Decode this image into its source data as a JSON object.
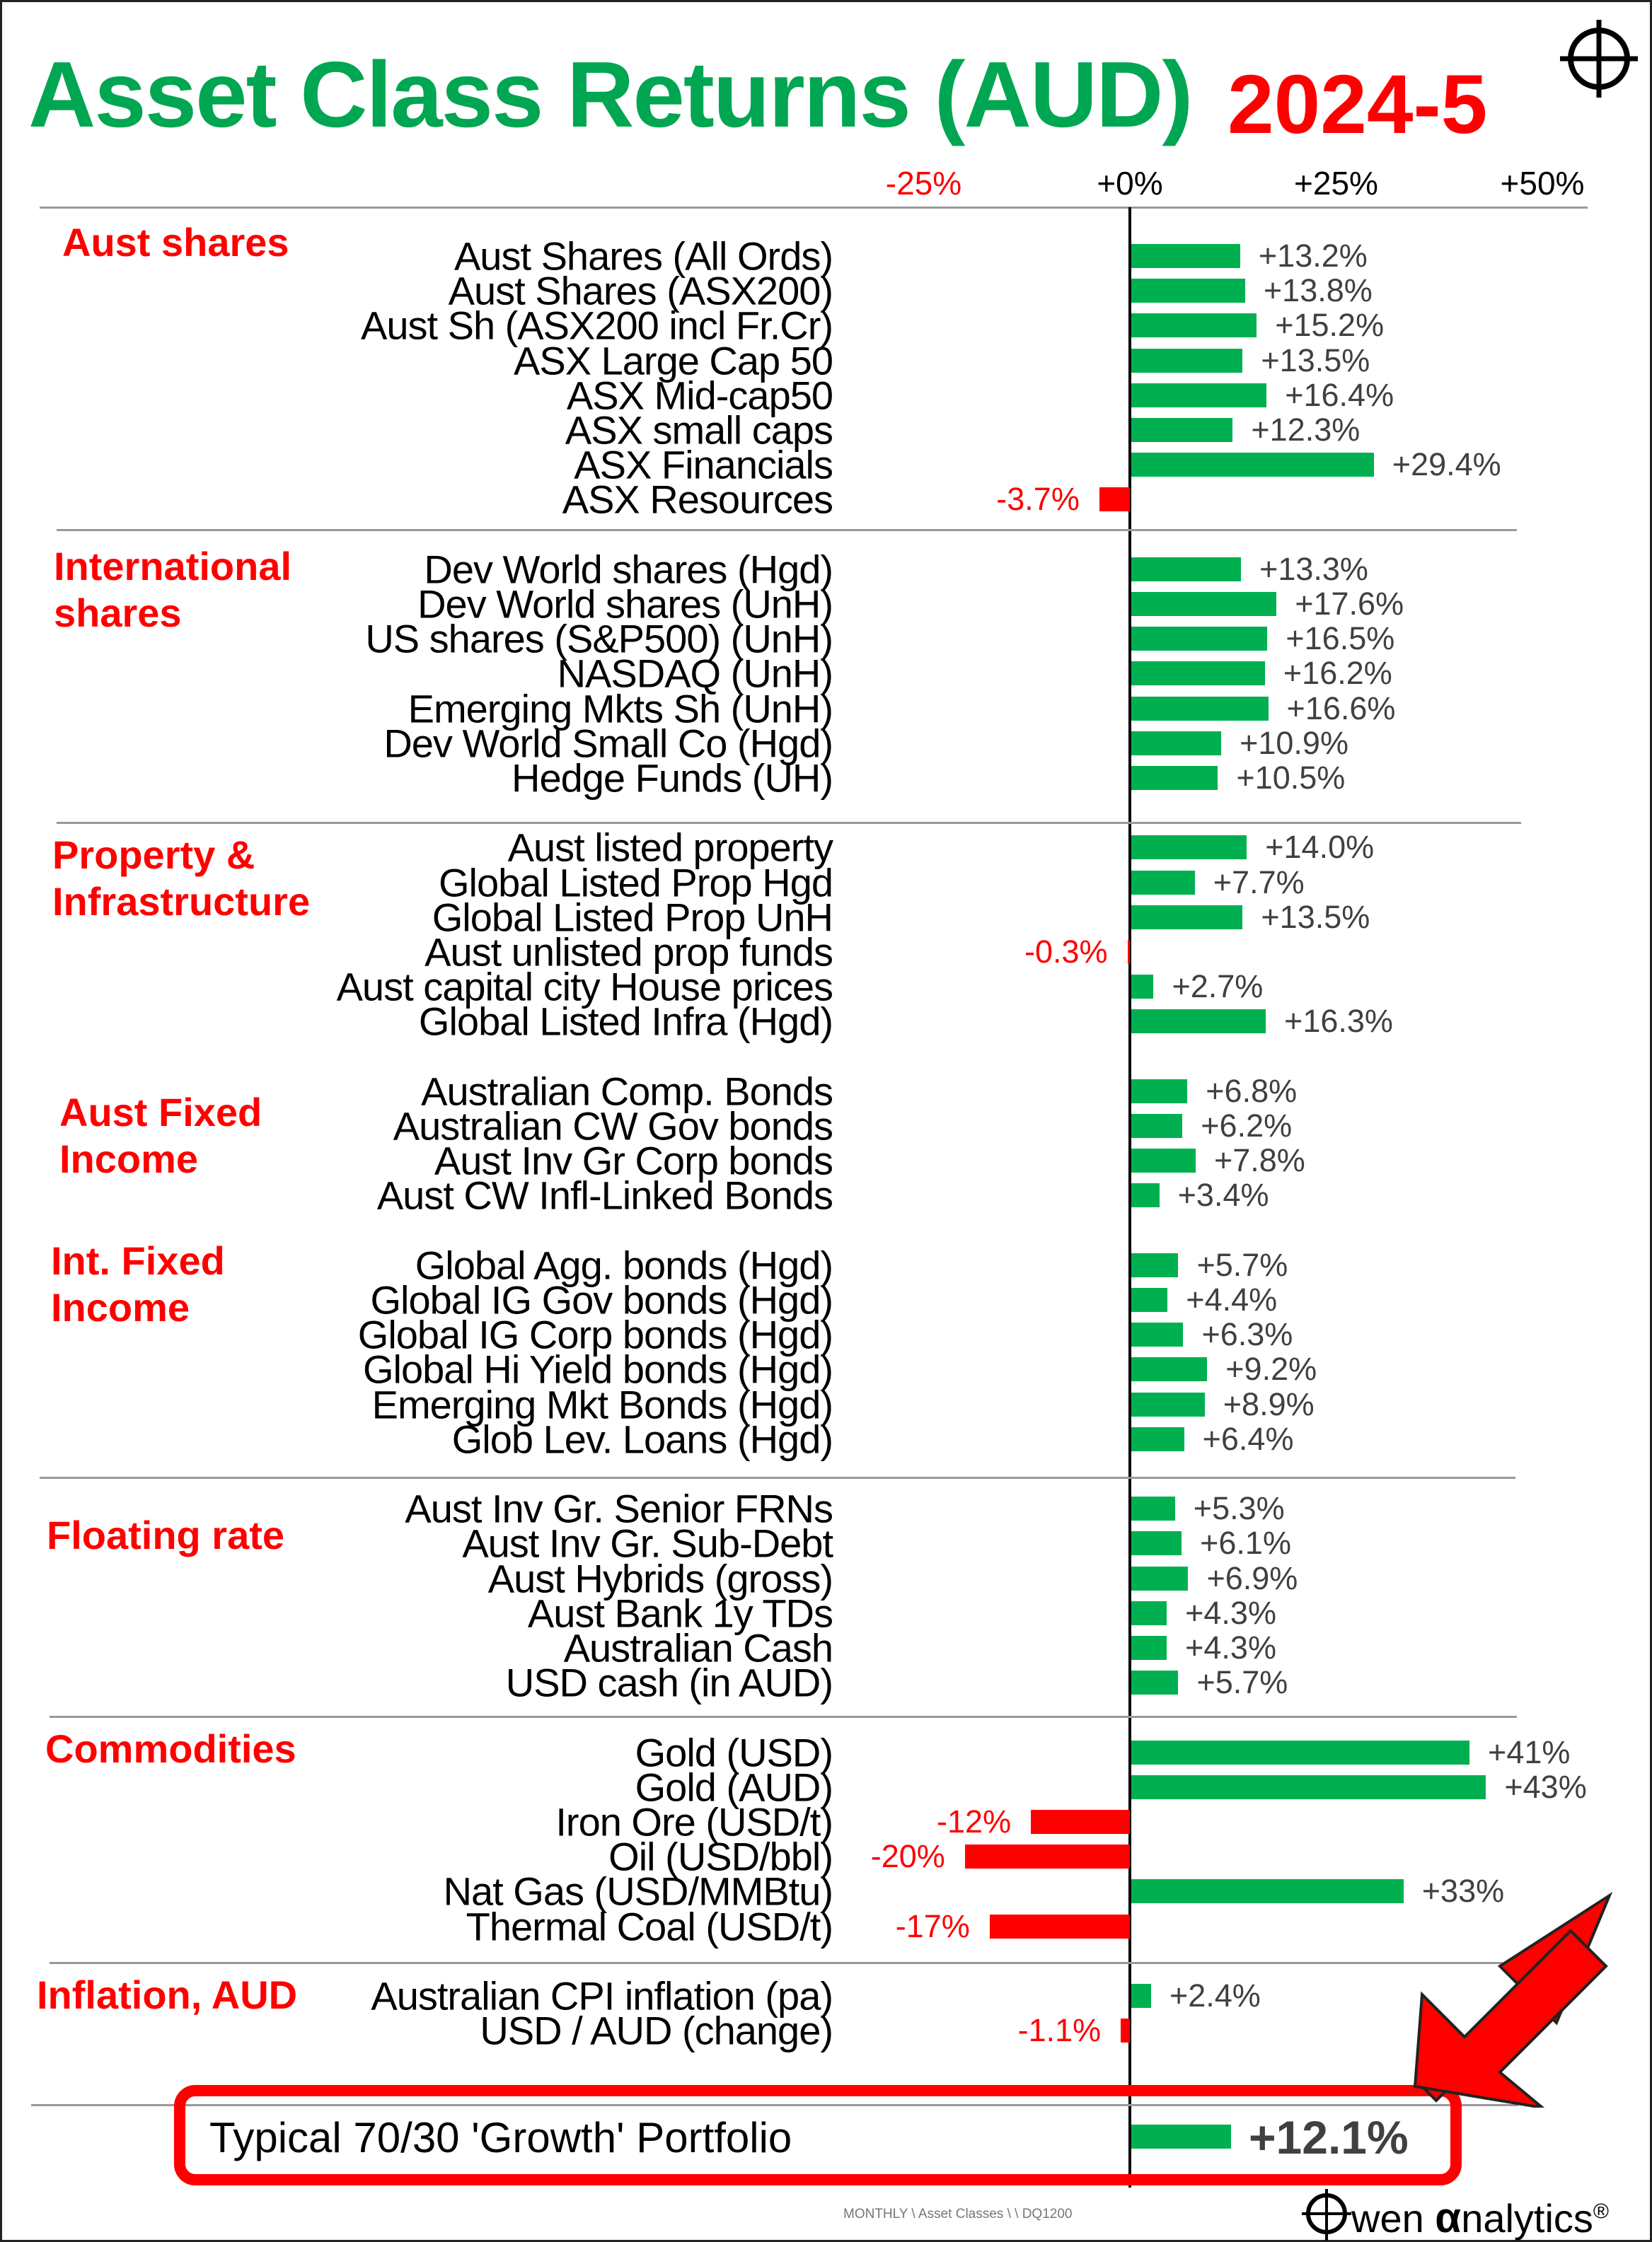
{
  "header": {
    "title": "Asset Class Returns (AUD)",
    "period": "2024-5"
  },
  "footer": {
    "path": "MONTHLY \\ Asset Classes \\ \\ DQ1200",
    "logo": "Owen αnalytics®",
    "logo_rest": "wen ",
    "logo_alpha": "α",
    "logo_tail": "nalytics",
    "logo_reg": "®"
  },
  "colors": {
    "positive": "#00b050",
    "negative": "#ff0000",
    "title": "#00a651"
  },
  "chart_data": {
    "type": "bar",
    "orientation": "horizontal",
    "title": "Asset Class Returns (AUD) 2024-5",
    "xlim": [
      -25,
      50
    ],
    "x_ticks": [
      "-25%",
      "+0%",
      "+25%",
      "+50%"
    ],
    "x_tick_values": [
      -25,
      0,
      25,
      50
    ],
    "groups": [
      {
        "name": "Aust shares",
        "items": [
          {
            "label": "Aust Shares (All Ords)",
            "value": 13.2,
            "text": "+13.2%"
          },
          {
            "label": "Aust Shares (ASX200)",
            "value": 13.8,
            "text": "+13.8%"
          },
          {
            "label": "Aust Sh (ASX200 incl Fr.Cr)",
            "value": 15.2,
            "text": "+15.2%"
          },
          {
            "label": "ASX Large Cap 50",
            "value": 13.5,
            "text": "+13.5%"
          },
          {
            "label": "ASX Mid-cap50",
            "value": 16.4,
            "text": "+16.4%"
          },
          {
            "label": "ASX small caps",
            "value": 12.3,
            "text": "+12.3%"
          },
          {
            "label": "ASX Financials",
            "value": 29.4,
            "text": "+29.4%"
          },
          {
            "label": "ASX Resources",
            "value": -3.7,
            "text": "-3.7%"
          }
        ]
      },
      {
        "name": "International shares",
        "items": [
          {
            "label": "Dev World shares (Hgd)",
            "value": 13.3,
            "text": "+13.3%"
          },
          {
            "label": "Dev World shares (UnH)",
            "value": 17.6,
            "text": "+17.6%"
          },
          {
            "label": "US shares (S&P500) (UnH)",
            "value": 16.5,
            "text": "+16.5%"
          },
          {
            "label": "NASDAQ (UnH)",
            "value": 16.2,
            "text": "+16.2%"
          },
          {
            "label": "Emerging Mkts Sh (UnH)",
            "value": 16.6,
            "text": "+16.6%"
          },
          {
            "label": "Dev World Small Co (Hgd)",
            "value": 10.9,
            "text": "+10.9%"
          },
          {
            "label": "Hedge Funds (UH)",
            "value": 10.5,
            "text": "+10.5%"
          }
        ]
      },
      {
        "name": "Property & Infrastructure",
        "items": [
          {
            "label": "Aust listed property",
            "value": 14.0,
            "text": "+14.0%"
          },
          {
            "label": "Global Listed Prop Hgd",
            "value": 7.7,
            "text": "+7.7%"
          },
          {
            "label": "Global Listed Prop UnH",
            "value": 13.5,
            "text": "+13.5%"
          },
          {
            "label": "Aust unlisted prop funds",
            "value": -0.3,
            "text": "-0.3%"
          },
          {
            "label": "Aust capital city House prices",
            "value": 2.7,
            "text": "+2.7%"
          },
          {
            "label": "Global Listed Infra (Hgd)",
            "value": 16.3,
            "text": "+16.3%"
          }
        ]
      },
      {
        "name": "Aust Fixed Income",
        "items": [
          {
            "label": "Australian Comp. Bonds",
            "value": 6.8,
            "text": "+6.8%"
          },
          {
            "label": "Australian CW Gov bonds",
            "value": 6.2,
            "text": "+6.2%"
          },
          {
            "label": "Aust Inv Gr Corp bonds",
            "value": 7.8,
            "text": "+7.8%"
          },
          {
            "label": "Aust CW Infl-Linked Bonds",
            "value": 3.4,
            "text": "+3.4%"
          }
        ]
      },
      {
        "name": "Int. Fixed Income",
        "items": [
          {
            "label": "Global Agg. bonds (Hgd)",
            "value": 5.7,
            "text": "+5.7%"
          },
          {
            "label": "Global IG Gov bonds (Hgd)",
            "value": 4.4,
            "text": "+4.4%"
          },
          {
            "label": "Global IG Corp bonds (Hgd)",
            "value": 6.3,
            "text": "+6.3%"
          },
          {
            "label": "Global Hi Yield bonds (Hgd)",
            "value": 9.2,
            "text": "+9.2%"
          },
          {
            "label": "Emerging Mkt Bonds (Hgd)",
            "value": 8.9,
            "text": "+8.9%"
          },
          {
            "label": "Glob Lev. Loans (Hgd)",
            "value": 6.4,
            "text": "+6.4%"
          }
        ]
      },
      {
        "name": "Floating rate",
        "items": [
          {
            "label": "Aust Inv Gr. Senior FRNs",
            "value": 5.3,
            "text": "+5.3%"
          },
          {
            "label": "Aust Inv Gr. Sub-Debt",
            "value": 6.1,
            "text": "+6.1%"
          },
          {
            "label": "Aust Hybrids (gross)",
            "value": 6.9,
            "text": "+6.9%"
          },
          {
            "label": "Aust Bank 1y TDs",
            "value": 4.3,
            "text": "+4.3%"
          },
          {
            "label": "Australian Cash",
            "value": 4.3,
            "text": "+4.3%"
          },
          {
            "label": "USD cash (in AUD)",
            "value": 5.7,
            "text": "+5.7%"
          }
        ]
      },
      {
        "name": "Commodities",
        "items": [
          {
            "label": "Gold (USD)",
            "value": 41,
            "text": "+41%"
          },
          {
            "label": "Gold (AUD)",
            "value": 43,
            "text": "+43%"
          },
          {
            "label": "Iron Ore (USD/t)",
            "value": -12,
            "text": "-12%"
          },
          {
            "label": "Oil (USD/bbl)",
            "value": -20,
            "text": "-20%"
          },
          {
            "label": "Nat Gas (USD/MMBtu)",
            "value": 33,
            "text": "+33%"
          },
          {
            "label": "Thermal Coal (USD/t)",
            "value": -17,
            "text": "-17%"
          }
        ]
      },
      {
        "name": "Inflation, AUD",
        "items": [
          {
            "label": "Australian CPI inflation (pa)",
            "value": 2.4,
            "text": "+2.4%"
          },
          {
            "label": "USD / AUD (change)",
            "value": -1.1,
            "text": "-1.1%"
          }
        ]
      }
    ],
    "portfolio": {
      "label": "Typical 70/30 'Growth' Portfolio",
      "value": 12.1,
      "text": "+12.1%"
    }
  }
}
